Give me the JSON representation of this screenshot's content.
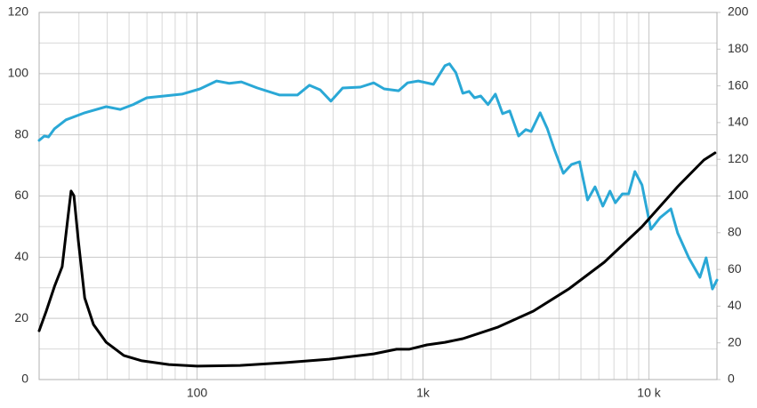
{
  "chart_data": {
    "type": "line",
    "xscale": "log",
    "grid": true,
    "minor_grid": true,
    "xlim": [
      20,
      20000
    ],
    "xticks": [
      100,
      {
        "value": 1000,
        "label": "1k"
      },
      {
        "value": 10000,
        "label": "10 k"
      }
    ],
    "ylim": [
      0,
      120
    ],
    "yticks": [
      0,
      20,
      40,
      60,
      80,
      100,
      120
    ],
    "y2lim": [
      0,
      200
    ],
    "y2ticks": [
      0,
      20,
      40,
      60,
      80,
      100,
      120,
      140,
      160,
      180,
      200
    ],
    "series": [
      {
        "color": "#2aa8d6",
        "axis": "y",
        "x": [
          20,
          21.1,
          22,
          23.4,
          26.3,
          31.8,
          39.6,
          45.7,
          52.2,
          59.9,
          71.5,
          85.8,
          103,
          122,
          139,
          157,
          185,
          232,
          278,
          314,
          351,
          391,
          441,
          528,
          605,
          673,
          780,
          854,
          953,
          1112,
          1250,
          1310,
          1398,
          1500,
          1600,
          1690,
          1800,
          1940,
          2090,
          2250,
          2420,
          2650,
          2850,
          3010,
          3300,
          3550,
          3810,
          4180,
          4540,
          4930,
          5350,
          5770,
          6250,
          6720,
          7100,
          7630,
          8130,
          8660,
          9310,
          10200,
          11200,
          12500,
          13400,
          15000,
          16800,
          17900,
          19100,
          20000
        ],
        "values": [
          78.2,
          79.6,
          79.3,
          82,
          84.9,
          87.2,
          89.2,
          88.3,
          89.9,
          92.1,
          92.7,
          93.3,
          95,
          97.6,
          96.8,
          97.3,
          95.3,
          93,
          93,
          96.2,
          94.7,
          91,
          95.3,
          95.6,
          97,
          95,
          94.4,
          97,
          97.6,
          96.5,
          102.6,
          103.2,
          100.3,
          93.6,
          94.2,
          92.1,
          92.7,
          89.9,
          93.3,
          86.9,
          87.8,
          79.6,
          81.7,
          81.1,
          87.2,
          82,
          75.3,
          67.4,
          70.3,
          71.2,
          58.7,
          63,
          56.7,
          61.6,
          57.8,
          60.7,
          60.7,
          68,
          63.6,
          49.1,
          52.9,
          55.8,
          47.9,
          39.8,
          33.4,
          39.8,
          29.6,
          32.5
        ]
      },
      {
        "color": "#000000",
        "axis": "y2",
        "x": [
          20,
          21.5,
          23.4,
          25.3,
          26.8,
          27.7,
          28.5,
          29.8,
          31.8,
          34.8,
          39.6,
          47.4,
          57,
          75,
          100,
          155,
          244,
          384,
          605,
          764,
          868,
          1040,
          1250,
          1500,
          2150,
          3080,
          4420,
          6340,
          9310,
          13400,
          17500,
          19600
        ],
        "values": [
          26.6,
          37.3,
          50.8,
          61.5,
          88.1,
          102.7,
          100.2,
          76,
          44.5,
          30,
          20.3,
          13.1,
          10.2,
          8.2,
          7.3,
          7.7,
          9.2,
          11.1,
          14,
          16.5,
          16.5,
          18.9,
          20.3,
          22.3,
          28.6,
          37.3,
          49.4,
          63.9,
          83.3,
          105.1,
          119.6,
          123.5
        ]
      }
    ]
  }
}
